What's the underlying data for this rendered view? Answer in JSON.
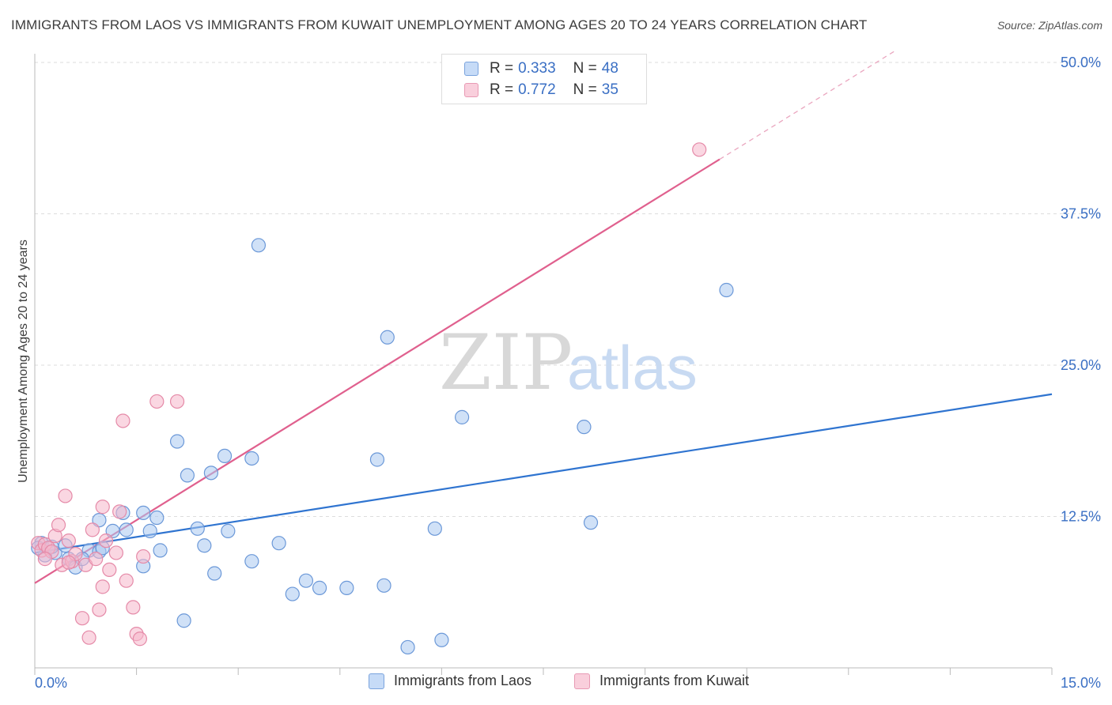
{
  "title": "IMMIGRANTS FROM LAOS VS IMMIGRANTS FROM KUWAIT UNEMPLOYMENT AMONG AGES 20 TO 24 YEARS CORRELATION CHART",
  "source": "Source: ZipAtlas.com",
  "watermark": {
    "zip": "ZIP",
    "atlas": "atlas"
  },
  "colors": {
    "laos_fill": "#a9c8f0",
    "laos_stroke": "#6b98d8",
    "laos_line": "#2f74d0",
    "kuwait_fill": "#f6b7cb",
    "kuwait_stroke": "#e58aa8",
    "kuwait_line": "#e0608e",
    "tick_label": "#3a6fc4",
    "grid": "#dddddd"
  },
  "legend": {
    "laos": {
      "r_label": "R = ",
      "r_value": "0.333",
      "n_label": "N = ",
      "n_value": "48"
    },
    "kuwait": {
      "r_label": "R = ",
      "r_value": "0.772",
      "n_label": "N = ",
      "n_value": "35"
    }
  },
  "chart_data": {
    "type": "scatter",
    "title": "IMMIGRANTS FROM LAOS VS IMMIGRANTS FROM KUWAIT UNEMPLOYMENT AMONG AGES 20 TO 24 YEARS CORRELATION CHART",
    "xlabel": "",
    "ylabel": "Unemployment Among Ages 20 to 24 years",
    "xlim": [
      0,
      15
    ],
    "ylim": [
      0,
      50
    ],
    "x_tick_labels": [
      "0.0%",
      "15.0%"
    ],
    "y_ticks": [
      12.5,
      25.0,
      37.5,
      50.0
    ],
    "y_tick_labels": [
      "12.5%",
      "25.0%",
      "37.5%",
      "50.0%"
    ],
    "grid": true,
    "legend_position": "top-center",
    "series": [
      {
        "name": "Immigrants from Laos",
        "r": 0.333,
        "n": 48,
        "trend": {
          "x": [
            0,
            15
          ],
          "y": [
            9.5,
            22.6
          ],
          "dashed_extension": false
        },
        "points": [
          [
            0.1,
            10.3
          ],
          [
            0.15,
            9.3
          ],
          [
            0.3,
            9.5
          ],
          [
            0.45,
            10.1
          ],
          [
            0.5,
            9.0
          ],
          [
            0.6,
            8.3
          ],
          [
            0.8,
            9.7
          ],
          [
            0.95,
            9.6
          ],
          [
            1.0,
            9.9
          ],
          [
            0.95,
            12.2
          ],
          [
            1.3,
            12.8
          ],
          [
            1.35,
            11.4
          ],
          [
            1.15,
            11.3
          ],
          [
            1.6,
            12.8
          ],
          [
            1.6,
            8.4
          ],
          [
            1.8,
            12.4
          ],
          [
            1.85,
            9.7
          ],
          [
            1.7,
            11.3
          ],
          [
            2.1,
            18.7
          ],
          [
            2.25,
            15.9
          ],
          [
            2.2,
            3.9
          ],
          [
            2.4,
            11.5
          ],
          [
            2.5,
            10.1
          ],
          [
            2.6,
            16.1
          ],
          [
            2.8,
            17.5
          ],
          [
            2.65,
            7.8
          ],
          [
            2.85,
            11.3
          ],
          [
            3.2,
            8.8
          ],
          [
            3.2,
            17.3
          ],
          [
            3.3,
            34.9
          ],
          [
            3.6,
            10.3
          ],
          [
            3.8,
            6.1
          ],
          [
            4.0,
            7.2
          ],
          [
            4.2,
            6.6
          ],
          [
            4.6,
            6.6
          ],
          [
            5.05,
            17.2
          ],
          [
            5.15,
            6.8
          ],
          [
            5.2,
            27.3
          ],
          [
            5.5,
            1.7
          ],
          [
            5.9,
            11.5
          ],
          [
            6.0,
            2.3
          ],
          [
            6.3,
            20.7
          ],
          [
            8.1,
            19.9
          ],
          [
            8.2,
            12.0
          ],
          [
            10.2,
            31.2
          ],
          [
            0.05,
            9.9
          ],
          [
            0.25,
            10.0
          ],
          [
            0.7,
            9.0
          ]
        ]
      },
      {
        "name": "Immigrants from Kuwait",
        "r": 0.772,
        "n": 35,
        "trend": {
          "x": [
            0,
            10.1
          ],
          "y": [
            7.0,
            42.0
          ],
          "dashed_extension": {
            "x": [
              10.1,
              12.7
            ],
            "y": [
              42.0,
              51.0
            ]
          }
        },
        "points": [
          [
            0.05,
            10.3
          ],
          [
            0.1,
            9.7
          ],
          [
            0.15,
            10.2
          ],
          [
            0.2,
            9.9
          ],
          [
            0.3,
            10.9
          ],
          [
            0.35,
            11.8
          ],
          [
            0.4,
            8.5
          ],
          [
            0.45,
            14.2
          ],
          [
            0.5,
            10.5
          ],
          [
            0.55,
            8.8
          ],
          [
            0.6,
            9.4
          ],
          [
            0.7,
            4.1
          ],
          [
            0.75,
            8.5
          ],
          [
            0.8,
            2.5
          ],
          [
            0.85,
            11.4
          ],
          [
            0.9,
            9.0
          ],
          [
            0.95,
            4.8
          ],
          [
            1.0,
            6.7
          ],
          [
            1.0,
            13.3
          ],
          [
            1.05,
            10.5
          ],
          [
            1.2,
            9.5
          ],
          [
            1.25,
            12.9
          ],
          [
            1.3,
            20.4
          ],
          [
            1.35,
            7.2
          ],
          [
            1.45,
            5.0
          ],
          [
            1.5,
            2.8
          ],
          [
            1.55,
            2.4
          ],
          [
            1.6,
            9.2
          ],
          [
            1.8,
            22.0
          ],
          [
            2.1,
            22.0
          ],
          [
            0.25,
            9.6
          ],
          [
            0.5,
            8.7
          ],
          [
            1.1,
            8.1
          ],
          [
            0.15,
            9.0
          ],
          [
            9.8,
            42.8
          ]
        ]
      }
    ]
  },
  "bottom_legend": {
    "laos": "Immigrants from Laos",
    "kuwait": "Immigrants from Kuwait"
  }
}
